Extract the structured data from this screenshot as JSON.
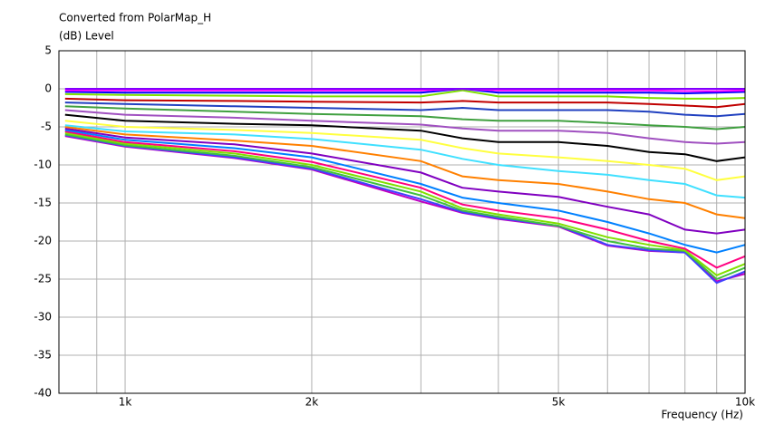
{
  "chart_data": {
    "type": "line",
    "title": "Converted from PolarMap_H",
    "y_label": "(dB)  Level",
    "x_label": "Frequency  (Hz)",
    "log_x": true,
    "grid": true,
    "xlim": [
      782,
      10000
    ],
    "xticks": [
      {
        "value": 1000,
        "label": "1k"
      },
      {
        "value": 2000,
        "label": "2k"
      },
      {
        "value": 5000,
        "label": "5k"
      },
      {
        "value": 10000,
        "label": "10k"
      }
    ],
    "xminorticks": [
      900,
      3000,
      4000,
      6000,
      7000,
      8000,
      9000
    ],
    "ylim": [
      -40,
      5
    ],
    "yticks": [
      5,
      0,
      -5,
      -10,
      -15,
      -20,
      -25,
      -30,
      -35,
      -40
    ],
    "x": [
      800,
      1000,
      1500,
      2000,
      3000,
      3500,
      4000,
      5000,
      6000,
      7000,
      8000,
      9000,
      10000
    ],
    "series": [
      {
        "color": "#8000ff",
        "values": [
          0,
          0,
          0,
          0,
          0,
          0,
          0,
          0,
          0,
          0,
          0,
          0,
          0
        ]
      },
      {
        "color": "#ff00ff",
        "values": [
          -0.2,
          -0.2,
          -0.2,
          -0.2,
          -0.2,
          0,
          -0.2,
          -0.2,
          -0.2,
          -0.2,
          -0.3,
          -0.3,
          -0.2
        ]
      },
      {
        "color": "#0000ff",
        "values": [
          -0.4,
          -0.5,
          -0.5,
          -0.5,
          -0.5,
          0,
          -0.5,
          -0.5,
          -0.5,
          -0.5,
          -0.6,
          -0.5,
          -0.4
        ]
      },
      {
        "color": "#80e000",
        "values": [
          -0.7,
          -0.8,
          -0.9,
          -1,
          -1,
          -0.2,
          -1,
          -1,
          -1,
          -1.2,
          -1.3,
          -1.3,
          -1.2
        ]
      },
      {
        "color": "#c00000",
        "values": [
          -1.3,
          -1.5,
          -1.6,
          -1.7,
          -1.8,
          -1.6,
          -1.8,
          -1.8,
          -1.8,
          -2,
          -2.2,
          -2.4,
          -2
        ]
      },
      {
        "color": "#2040c0",
        "values": [
          -1.8,
          -2,
          -2.3,
          -2.5,
          -2.8,
          -2.5,
          -2.8,
          -2.8,
          -2.8,
          -3,
          -3.4,
          -3.6,
          -3.3
        ]
      },
      {
        "color": "#40a040",
        "values": [
          -2.3,
          -2.6,
          -3,
          -3.3,
          -3.6,
          -4,
          -4.2,
          -4.2,
          -4.5,
          -4.8,
          -5,
          -5.3,
          -5
        ]
      },
      {
        "color": "#a050c0",
        "values": [
          -2.8,
          -3.4,
          -3.8,
          -4.2,
          -4.7,
          -5.2,
          -5.5,
          -5.5,
          -5.8,
          -6.5,
          -7,
          -7.2,
          -7
        ]
      },
      {
        "color": "#000000",
        "values": [
          -3.4,
          -4.2,
          -4.6,
          -4.8,
          -5.5,
          -6.5,
          -7,
          -7,
          -7.5,
          -8.3,
          -8.6,
          -9.5,
          -9
        ]
      },
      {
        "color": "#ffff40",
        "values": [
          -4.2,
          -5,
          -5.4,
          -5.8,
          -6.7,
          -7.8,
          -8.5,
          -9,
          -9.5,
          -10,
          -10.5,
          -12,
          -11.5
        ]
      },
      {
        "color": "#40e0ff",
        "values": [
          -4.8,
          -5.6,
          -6,
          -6.6,
          -8,
          -9.2,
          -10,
          -10.8,
          -11.3,
          -12,
          -12.5,
          -14,
          -14.3
        ]
      },
      {
        "color": "#ff8000",
        "values": [
          -5,
          -6,
          -6.8,
          -7.5,
          -9.5,
          -11.5,
          -12,
          -12.5,
          -13.5,
          -14.5,
          -15,
          -16.5,
          -17
        ]
      },
      {
        "color": "#8000c0",
        "values": [
          -5.2,
          -6.4,
          -7.3,
          -8.5,
          -11,
          -13,
          -13.5,
          -14.2,
          -15.5,
          -16.5,
          -18.5,
          -19,
          -18.5
        ]
      },
      {
        "color": "#0080ff",
        "values": [
          -5.4,
          -6.7,
          -7.8,
          -9,
          -12.5,
          -14.3,
          -15,
          -16,
          -17.5,
          -19,
          -20.5,
          -21.5,
          -20.5
        ]
      },
      {
        "color": "#ff0080",
        "values": [
          -5.6,
          -7,
          -8.2,
          -9.6,
          -13,
          -15.2,
          -16,
          -17,
          -18.5,
          -20,
          -21,
          -23.5,
          -22
        ]
      },
      {
        "color": "#80e000",
        "values": [
          -5.8,
          -7.2,
          -8.5,
          -10,
          -13.5,
          -15.7,
          -16.5,
          -17.7,
          -19.5,
          -20.5,
          -21.2,
          -24.5,
          -23
        ]
      },
      {
        "color": "#40c040",
        "values": [
          -6,
          -7.4,
          -8.8,
          -10.3,
          -14,
          -16,
          -16.8,
          -18,
          -20,
          -21,
          -21.3,
          -25,
          -23.5
        ]
      },
      {
        "color": "#4040ff",
        "values": [
          -6.1,
          -7.5,
          -9,
          -10.5,
          -14.5,
          -16.2,
          -17,
          -18,
          -20.5,
          -21.2,
          -21.5,
          -25.5,
          -24
        ]
      },
      {
        "color": "#c000c0",
        "values": [
          -6.2,
          -7.6,
          -9.1,
          -10.6,
          -14.8,
          -16.3,
          -17.1,
          -18.1,
          -20.6,
          -21.3,
          -21.5,
          -25.3,
          -24.3
        ]
      }
    ]
  }
}
